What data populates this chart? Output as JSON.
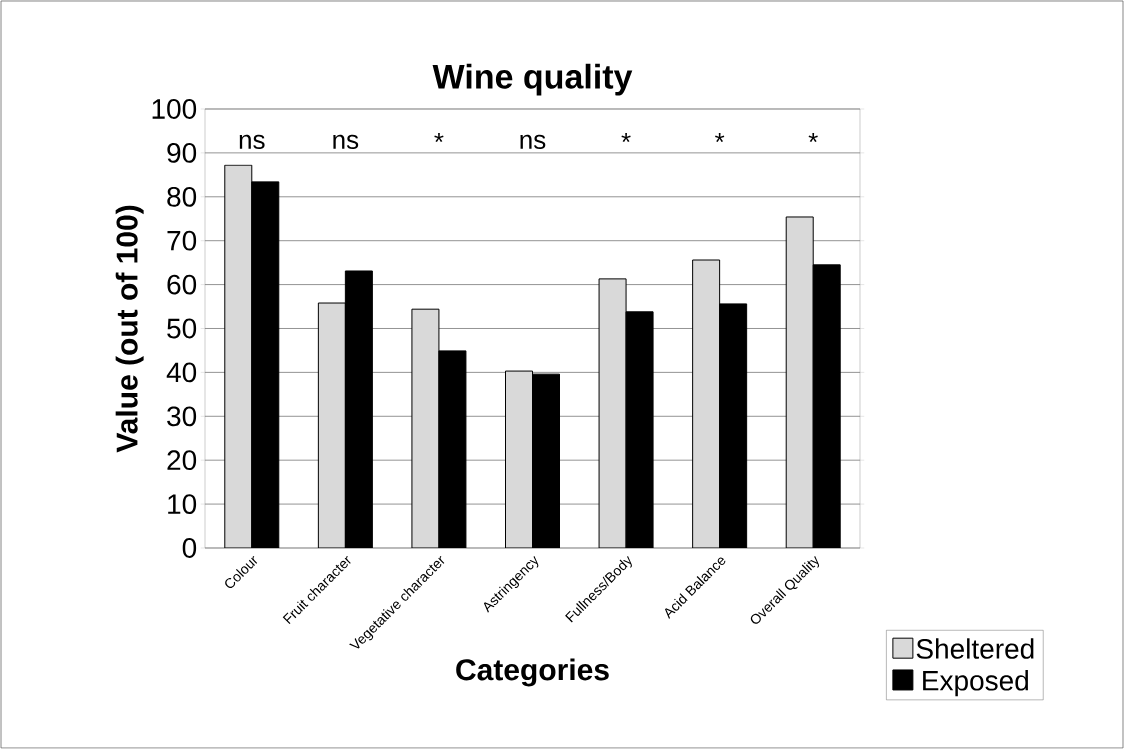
{
  "chart_data": {
    "type": "bar",
    "title": "Wine quality",
    "xlabel": "Categories",
    "ylabel": "Value (out of 100)",
    "categories": [
      "Colour",
      "Fruit character",
      "Vegetative character",
      "Astringency",
      "Fullness/Body",
      "Acid Balance",
      "Overall Quality"
    ],
    "series": [
      {
        "name": "Sheltered",
        "color": "#d9d9d9",
        "values": [
          87.2,
          55.8,
          54.4,
          40.3,
          61.3,
          65.6,
          75.4
        ]
      },
      {
        "name": "Exposed",
        "color": "#000000",
        "values": [
          83.4,
          63.1,
          44.9,
          39.6,
          53.8,
          55.6,
          64.5
        ]
      }
    ],
    "ylim": [
      0,
      100
    ],
    "yticks": [
      0,
      10,
      20,
      30,
      40,
      50,
      60,
      70,
      80,
      90,
      100
    ],
    "grid": "y",
    "legend": "bottom right",
    "annotations": [
      "ns",
      "ns",
      "*",
      "ns",
      "*",
      "*",
      "*"
    ]
  }
}
